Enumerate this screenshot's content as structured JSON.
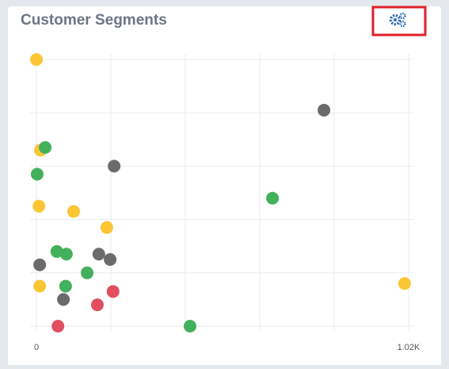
{
  "chart_data": {
    "type": "scatter",
    "title": "Customer Segments",
    "xlim": [
      0,
      1020
    ],
    "ylim": [
      0,
      100
    ],
    "xticks": [
      0,
      {
        "value": 204,
        "label": null
      },
      {
        "value": 408,
        "label": null
      },
      {
        "value": 612,
        "label": null
      },
      {
        "value": 816,
        "label": null
      },
      {
        "value": 1020,
        "label": "1.02K"
      }
    ],
    "yticks": [
      {
        "value": 0,
        "label": null
      },
      {
        "value": 20,
        "label": null
      },
      {
        "value": 40,
        "label": null
      },
      {
        "value": 60,
        "label": null
      },
      {
        "value": 80,
        "label": null
      },
      {
        "value": 100,
        "label": null
      }
    ],
    "grid": true,
    "series": [
      {
        "color": "#fcc534",
        "x": [
          0,
          11,
          7,
          102,
          193,
          9,
          1009
        ],
        "values": [
          100,
          66,
          45,
          43,
          37,
          15,
          16
        ]
      },
      {
        "color": "#6b6b6b",
        "x": [
          788,
          213,
          171,
          202,
          9,
          74
        ],
        "values": [
          81,
          60,
          27,
          25,
          23,
          10
        ]
      },
      {
        "color": "#43b05c",
        "x": [
          24,
          2,
          647,
          56,
          82,
          139,
          80,
          421
        ],
        "values": [
          67,
          57,
          48,
          28,
          27,
          20,
          15,
          0
        ]
      },
      {
        "color": "#e04e5f",
        "x": [
          210,
          167,
          59
        ],
        "values": [
          13,
          8,
          0
        ]
      }
    ]
  }
}
